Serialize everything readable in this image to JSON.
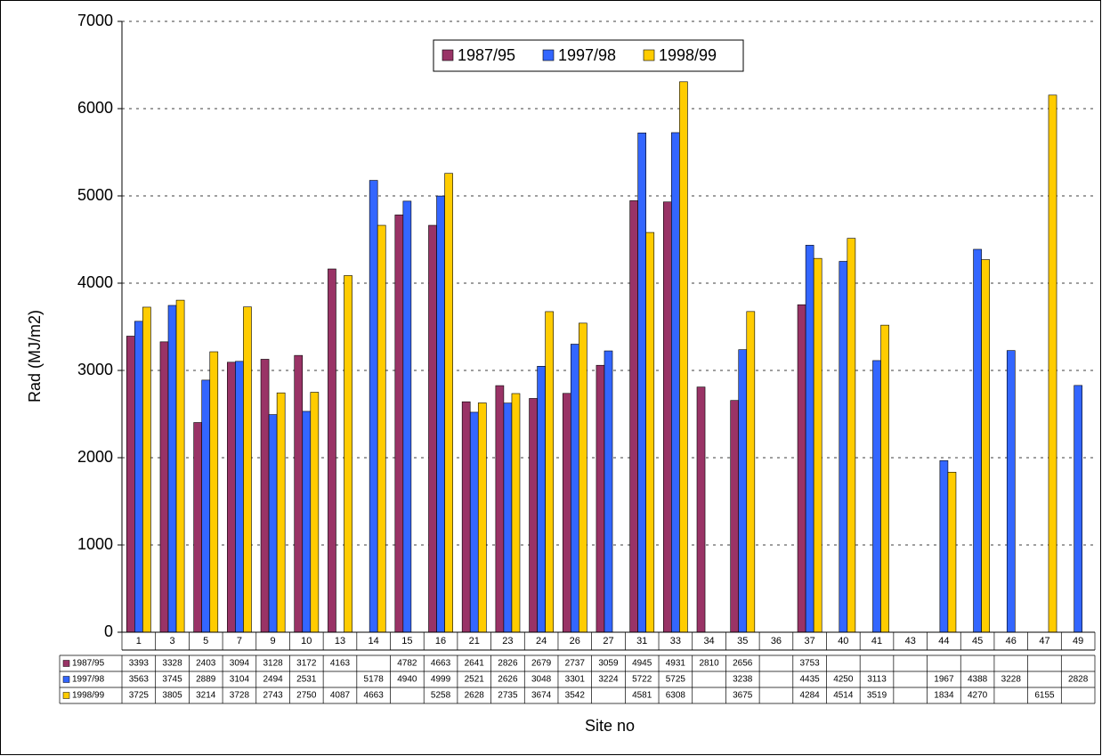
{
  "chart_data": {
    "type": "bar",
    "ylabel": "Rad (MJ/m2)",
    "xlabel": "Site no",
    "categories": [
      "1",
      "3",
      "5",
      "7",
      "9",
      "10",
      "13",
      "14",
      "15",
      "16",
      "21",
      "23",
      "24",
      "26",
      "27",
      "31",
      "33",
      "34",
      "35",
      "36",
      "37",
      "40",
      "41",
      "43",
      "44",
      "45",
      "46",
      "47",
      "49"
    ],
    "series": [
      {
        "name": "1987/95",
        "color": "#993366",
        "values": [
          3393,
          3328,
          2403,
          3094,
          3128,
          3172,
          4163,
          null,
          4782,
          4663,
          2641,
          2826,
          2679,
          2737,
          3059,
          4945,
          4931,
          2810,
          2656,
          null,
          3753,
          null,
          null,
          null,
          null,
          null,
          null,
          null,
          null
        ]
      },
      {
        "name": "1997/98",
        "color": "#3366ff",
        "values": [
          3563,
          3745,
          2889,
          3104,
          2494,
          2531,
          null,
          5178,
          4940,
          4999,
          2521,
          2626,
          3048,
          3301,
          3224,
          5722,
          5725,
          null,
          3238,
          null,
          4435,
          4250,
          3113,
          null,
          1967,
          4388,
          3228,
          null,
          2828
        ]
      },
      {
        "name": "1998/99",
        "color": "#ffcc00",
        "values": [
          3725,
          3805,
          3214,
          3728,
          2743,
          2750,
          4087,
          4663,
          null,
          5258,
          2628,
          2735,
          3674,
          3542,
          null,
          4581,
          6308,
          null,
          3675,
          null,
          4284,
          4514,
          3519,
          null,
          1834,
          4270,
          null,
          6155,
          null
        ]
      }
    ],
    "ylim": [
      0,
      7000
    ],
    "yticks": [
      0,
      1000,
      2000,
      3000,
      4000,
      5000,
      6000,
      7000
    ],
    "grid": true,
    "legend": "top"
  }
}
